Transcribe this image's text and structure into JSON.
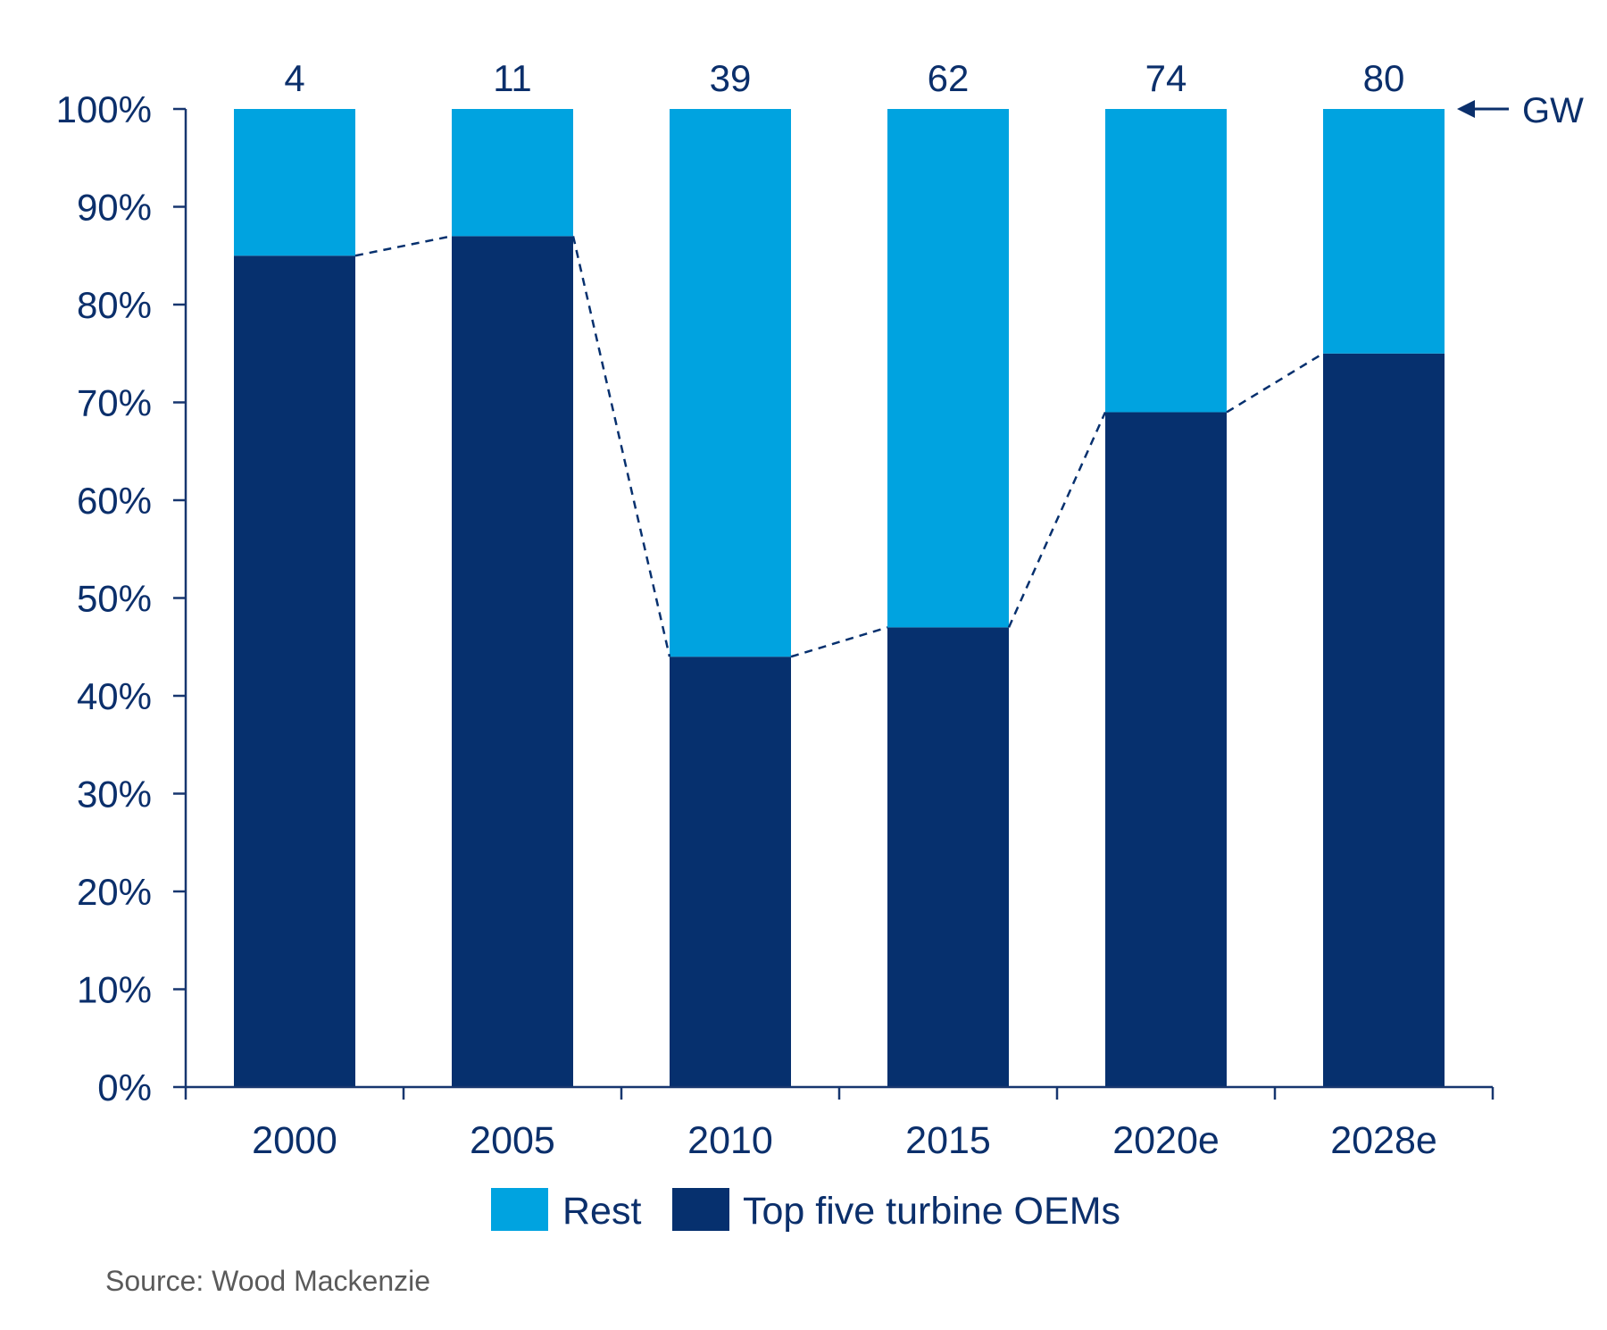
{
  "colors": {
    "rest": "#00a3e0",
    "top5": "#06306e",
    "text": "#0b2f6b",
    "axis": "#17366f",
    "source": "#5a5a5a"
  },
  "chart_data": {
    "type": "bar",
    "stacked": true,
    "categories": [
      "2000",
      "2005",
      "2010",
      "2015",
      "2020e",
      "2028e"
    ],
    "series": [
      {
        "name": "Top five turbine OEMs",
        "values": [
          85,
          87,
          44,
          47,
          69,
          75
        ]
      },
      {
        "name": "Rest",
        "values": [
          15,
          13,
          56,
          53,
          31,
          25
        ]
      }
    ],
    "totals_gw": [
      "4",
      "11",
      "39",
      "62",
      "74",
      "80"
    ],
    "totals_unit": "GW",
    "ylim": [
      0,
      100
    ],
    "yticks": [
      "0%",
      "10%",
      "20%",
      "30%",
      "40%",
      "50%",
      "60%",
      "70%",
      "80%",
      "90%",
      "100%"
    ],
    "xlabel": "",
    "ylabel": "",
    "grid": false,
    "connector_line": "dashed, joins tops of Top five turbine OEMs segments",
    "legend": {
      "placement": "bottom",
      "entries": [
        "Rest",
        "Top five turbine OEMs"
      ]
    },
    "source": "Source: Wood Mackenzie"
  }
}
